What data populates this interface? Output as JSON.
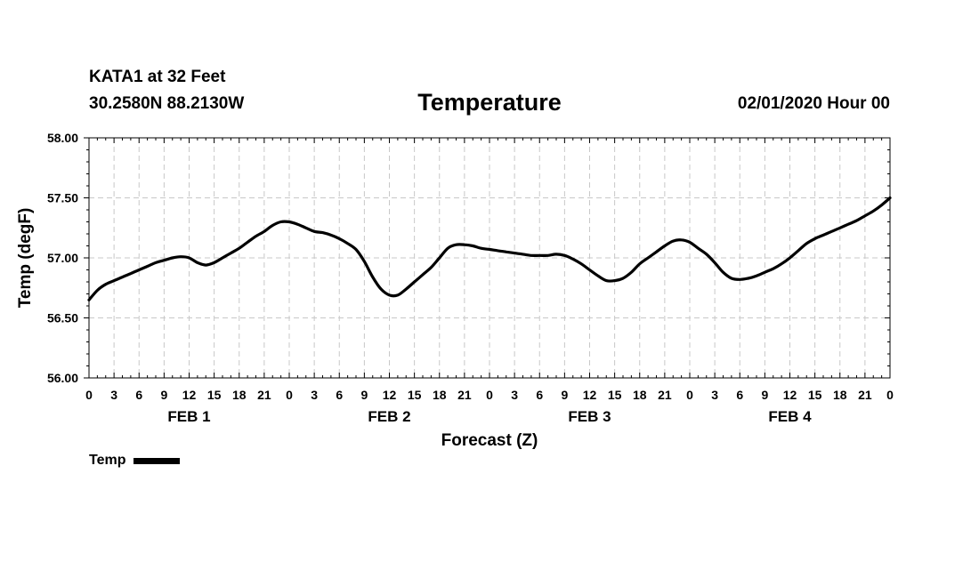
{
  "header": {
    "station": "KATA1 at 32 Feet",
    "coords": "30.2580N 88.2130W",
    "run_time": "02/01/2020 Hour 00"
  },
  "legend": {
    "label": "Temp"
  },
  "chart_data": {
    "type": "line",
    "title": "Temperature",
    "xlabel": "Forecast (Z)",
    "ylabel": "Temp (degF)",
    "ylim": [
      56.0,
      58.0
    ],
    "xlim": [
      0,
      96
    ],
    "y_ticks": [
      "56.00",
      "56.50",
      "57.00",
      "57.50",
      "58.00"
    ],
    "y_tick_values": [
      56.0,
      56.5,
      57.0,
      57.5,
      58.0
    ],
    "x_tick_hours": [
      0,
      3,
      6,
      9,
      12,
      15,
      18,
      21,
      24,
      27,
      30,
      33,
      36,
      39,
      42,
      45,
      48,
      51,
      54,
      57,
      60,
      63,
      66,
      69,
      72,
      75,
      78,
      81,
      84,
      87,
      90,
      93,
      96
    ],
    "x_tick_labels": [
      "0",
      "3",
      "6",
      "9",
      "12",
      "15",
      "18",
      "21",
      "0",
      "3",
      "6",
      "9",
      "12",
      "15",
      "18",
      "21",
      "0",
      "3",
      "6",
      "9",
      "12",
      "15",
      "18",
      "21",
      "0",
      "3",
      "6",
      "9",
      "12",
      "15",
      "18",
      "21",
      "0"
    ],
    "day_labels": [
      {
        "label": "FEB 1",
        "hour": 12
      },
      {
        "label": "FEB 2",
        "hour": 36
      },
      {
        "label": "FEB 3",
        "hour": 60
      },
      {
        "label": "FEB 4",
        "hour": 84
      }
    ],
    "grid": true,
    "series": [
      {
        "name": "Temp",
        "color": "#000000",
        "x": [
          0,
          1,
          2,
          3,
          4,
          5,
          6,
          7,
          8,
          9,
          10,
          11,
          12,
          13,
          14,
          15,
          16,
          17,
          18,
          19,
          20,
          21,
          22,
          23,
          24,
          25,
          26,
          27,
          28,
          29,
          30,
          31,
          32,
          33,
          34,
          35,
          36,
          37,
          38,
          39,
          40,
          41,
          42,
          43,
          44,
          45,
          46,
          47,
          48,
          49,
          50,
          51,
          52,
          53,
          54,
          55,
          56,
          57,
          58,
          59,
          60,
          61,
          62,
          63,
          64,
          65,
          66,
          67,
          68,
          69,
          70,
          71,
          72,
          73,
          74,
          75,
          76,
          77,
          78,
          79,
          80,
          81,
          82,
          83,
          84,
          85,
          86,
          87,
          88,
          89,
          90,
          91,
          92,
          93,
          94,
          95,
          96
        ],
        "values": [
          56.65,
          56.73,
          56.78,
          56.81,
          56.84,
          56.87,
          56.9,
          56.93,
          56.96,
          56.98,
          57.0,
          57.01,
          57.0,
          56.96,
          56.94,
          56.96,
          57.0,
          57.04,
          57.08,
          57.13,
          57.18,
          57.22,
          57.27,
          57.3,
          57.3,
          57.28,
          57.25,
          57.22,
          57.21,
          57.19,
          57.16,
          57.12,
          57.07,
          56.97,
          56.84,
          56.74,
          56.69,
          56.69,
          56.74,
          56.8,
          56.86,
          56.92,
          57.0,
          57.08,
          57.11,
          57.11,
          57.1,
          57.08,
          57.07,
          57.06,
          57.05,
          57.04,
          57.03,
          57.02,
          57.02,
          57.02,
          57.03,
          57.02,
          56.99,
          56.95,
          56.9,
          56.85,
          56.81,
          56.81,
          56.83,
          56.88,
          56.95,
          57.0,
          57.05,
          57.1,
          57.14,
          57.15,
          57.13,
          57.08,
          57.03,
          56.96,
          56.88,
          56.83,
          56.82,
          56.83,
          56.85,
          56.88,
          56.91,
          56.95,
          57.0,
          57.06,
          57.12,
          57.16,
          57.19,
          57.22,
          57.25,
          57.28,
          57.31,
          57.35,
          57.39,
          57.44,
          57.5
        ]
      }
    ]
  }
}
